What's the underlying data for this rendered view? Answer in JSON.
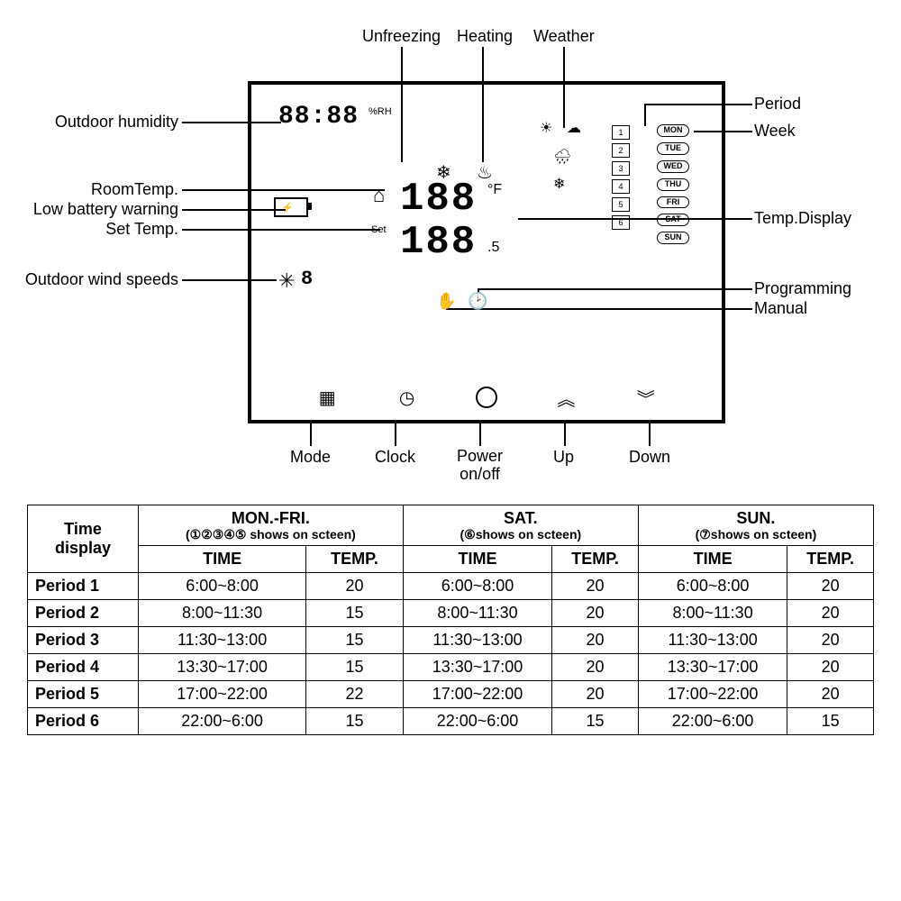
{
  "diagram": {
    "topLabels": {
      "unfreezing": "Unfreezing",
      "heating": "Heating",
      "weather": "Weather"
    },
    "leftLabels": {
      "outdoorHumidity": "Outdoor humidity",
      "roomTemp": "RoomTemp.",
      "lowBattery": "Low battery warning",
      "setTemp": "Set Temp.",
      "outdoorWind": "Outdoor wind speeds"
    },
    "rightLabels": {
      "period": "Period",
      "week": "Week",
      "tempDisplay": "Temp.Display",
      "programming": "Programming",
      "manual": "Manual"
    },
    "bottomLabels": {
      "mode": "Mode",
      "clock": "Clock",
      "power": "Power\non/off",
      "up": "Up",
      "down": "Down"
    },
    "display": {
      "timeDigits": "88:88",
      "rhUnit": "%RH",
      "setLabel": "Set",
      "tempDigitsTop": "188",
      "tempUnitTop": "°F",
      "tempDigitsBot": "188",
      "tempUnitBot": ".5",
      "windDigit": "8",
      "days": [
        "MON",
        "TUE",
        "WED",
        "THU",
        "FRI",
        "SAT",
        "SUN"
      ],
      "periods": [
        "1",
        "2",
        "3",
        "4",
        "5",
        "6"
      ]
    }
  },
  "table": {
    "cornerLabel": "Time\ndisplay",
    "groups": [
      {
        "title": "MON.-FRI.",
        "sub": "(①②③④⑤ shows on scteen)"
      },
      {
        "title": "SAT.",
        "sub": "(⑥shows on scteen)"
      },
      {
        "title": "SUN.",
        "sub": "(⑦shows on scteen)"
      }
    ],
    "subcols": [
      "TIME",
      "TEMP."
    ],
    "rows": [
      {
        "label": "Period 1",
        "cells": [
          "6:00~8:00",
          "20",
          "6:00~8:00",
          "20",
          "6:00~8:00",
          "20"
        ]
      },
      {
        "label": "Period 2",
        "cells": [
          "8:00~11:30",
          "15",
          "8:00~11:30",
          "20",
          "8:00~11:30",
          "20"
        ]
      },
      {
        "label": "Period 3",
        "cells": [
          "11:30~13:00",
          "15",
          "11:30~13:00",
          "20",
          "11:30~13:00",
          "20"
        ]
      },
      {
        "label": "Period 4",
        "cells": [
          "13:30~17:00",
          "15",
          "13:30~17:00",
          "20",
          "13:30~17:00",
          "20"
        ]
      },
      {
        "label": "Period 5",
        "cells": [
          "17:00~22:00",
          "22",
          "17:00~22:00",
          "20",
          "17:00~22:00",
          "20"
        ]
      },
      {
        "label": "Period 6",
        "cells": [
          "22:00~6:00",
          "15",
          "22:00~6:00",
          "15",
          "22:00~6:00",
          "15"
        ]
      }
    ]
  }
}
